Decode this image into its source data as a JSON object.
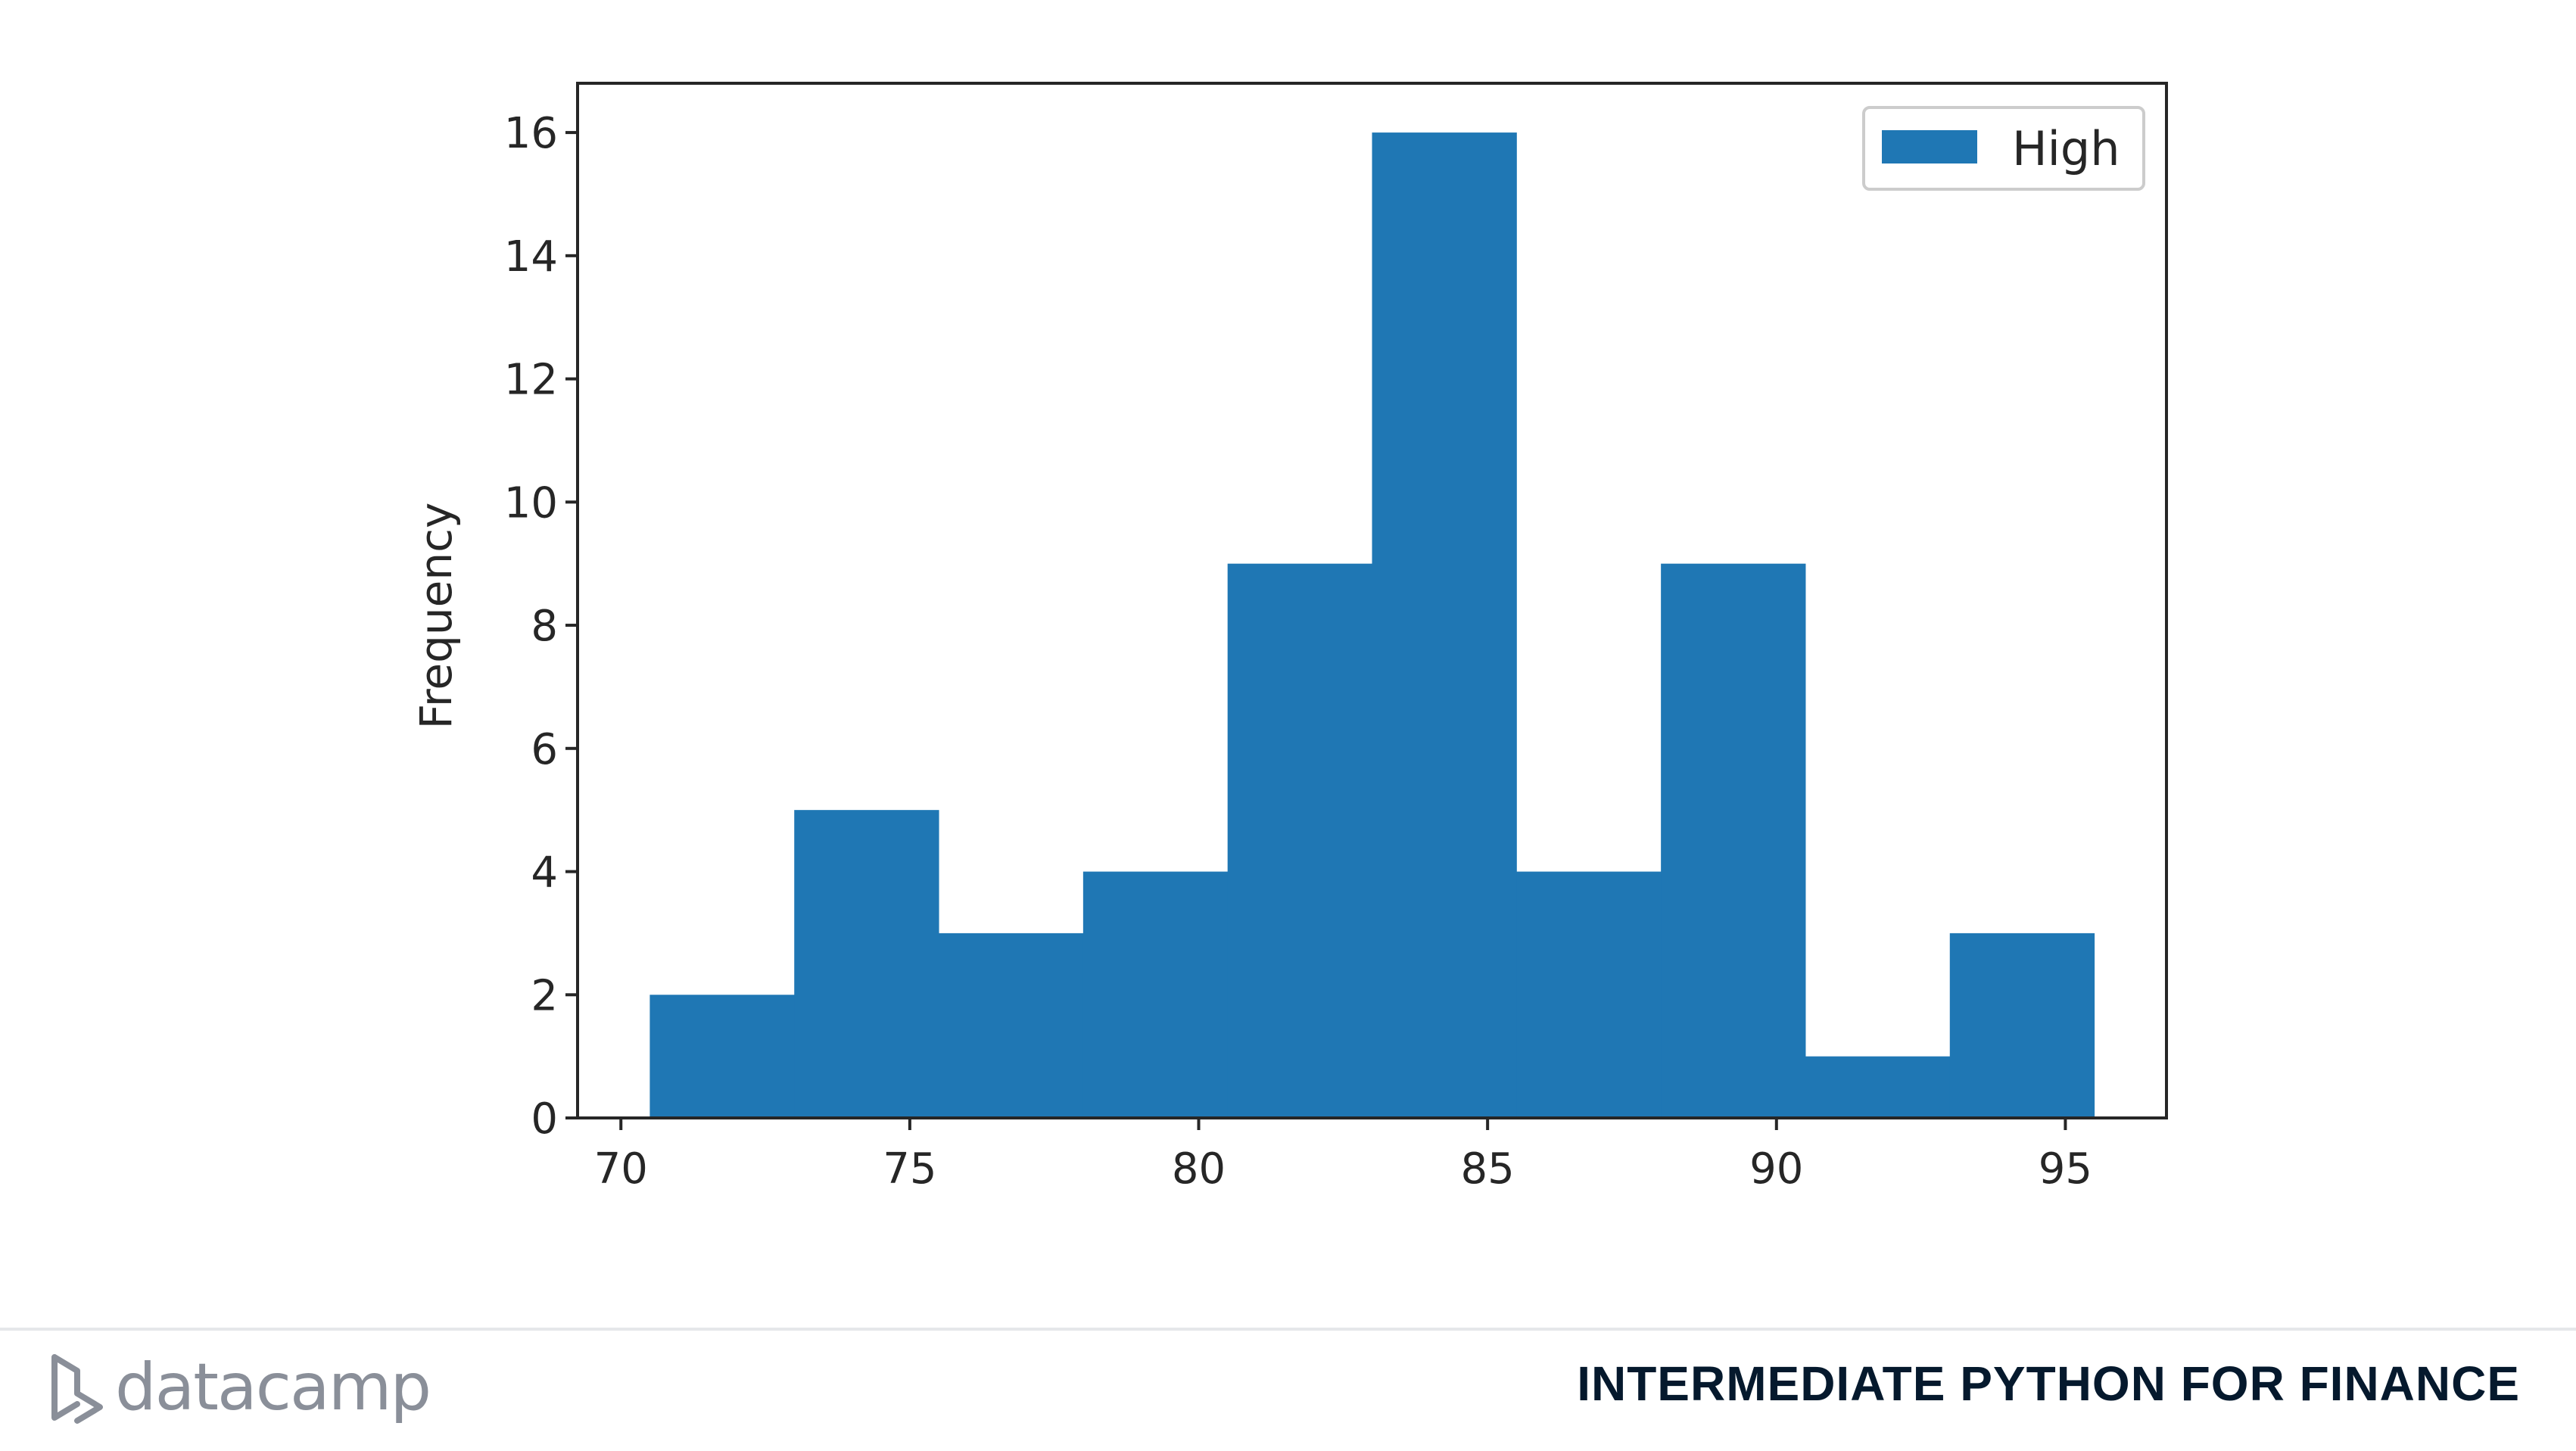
{
  "chart_data": {
    "type": "bar",
    "chart_subtype": "histogram",
    "series": [
      {
        "name": "High",
        "color": "#1f77b4",
        "bin_edges": [
          70.5,
          73.0,
          75.5,
          78.0,
          80.5,
          83.0,
          85.5,
          88.0,
          90.5,
          93.0,
          95.5
        ],
        "values": [
          2,
          5,
          3,
          4,
          9,
          16,
          4,
          9,
          1,
          3
        ]
      }
    ],
    "title": "",
    "xlabel": "",
    "ylabel": "Frequency",
    "xlim": [
      69.25,
      96.75
    ],
    "ylim": [
      0,
      16.8
    ],
    "xticks": [
      70,
      75,
      80,
      85,
      90,
      95
    ],
    "yticks": [
      0,
      2,
      4,
      6,
      8,
      10,
      12,
      14,
      16
    ],
    "grid": false,
    "legend_position": "top-right"
  },
  "footer": {
    "brand": "datacamp",
    "course_title": "INTERMEDIATE PYTHON FOR FINANCE",
    "logo_icon": "datacamp-logo-icon",
    "text_color": "#05192d",
    "brand_color": "#8a8f99"
  }
}
